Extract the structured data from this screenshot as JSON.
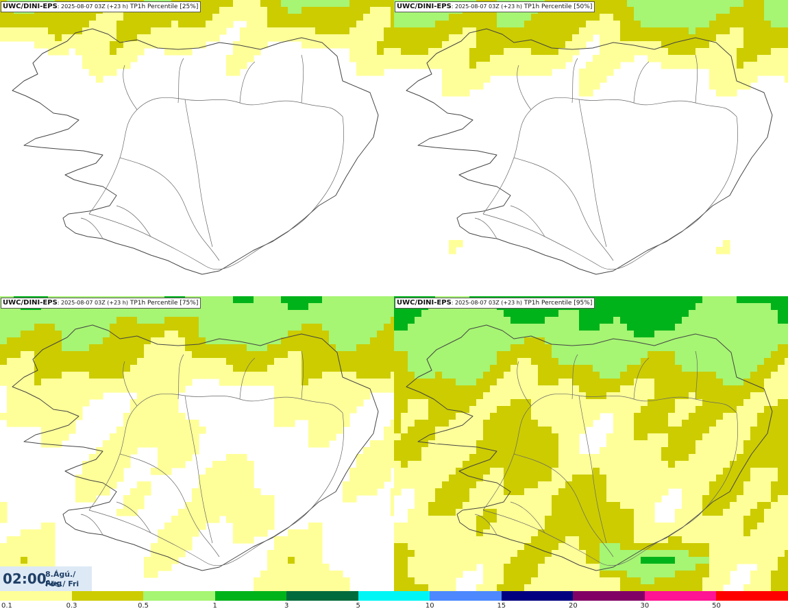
{
  "panels": [
    {
      "model": "UWC/DINI-EPS",
      "run": ": 2025-08-07 03Z (+23 h)",
      "field": " TP1h Percentile [25%]",
      "intensity": 0
    },
    {
      "model": "UWC/DINI-EPS",
      "run": ": 2025-08-07 03Z (+23 h)",
      "field": " TP1h Percentile [50%]",
      "intensity": 1
    },
    {
      "model": "UWC/DINI-EPS",
      "run": ": 2025-08-07 03Z (+23 h)",
      "field": " TP1h Percentile [75%]",
      "intensity": 2
    },
    {
      "model": "UWC/DINI-EPS",
      "run": ": 2025-08-07 03Z (+23 h)",
      "field": " TP1h Percentile [95%]",
      "intensity": 3
    }
  ],
  "valid_time": {
    "time": "02:00",
    "date_line1": "8.Ágú./ Aug",
    "date_line2": "Fös./ Fri"
  },
  "legend": {
    "thresholds": [
      "0.1",
      "0.3",
      "0.5",
      "1",
      "3",
      "5",
      "10",
      "15",
      "20",
      "30",
      "50"
    ],
    "colors": [
      "#ffff99",
      "#cccc00",
      "#a6f573",
      "#00b31a",
      "#006b3c",
      "#00f5f5",
      "#4d88ff",
      "#000080",
      "#800066",
      "#ff1493",
      "#ff0000"
    ]
  }
}
